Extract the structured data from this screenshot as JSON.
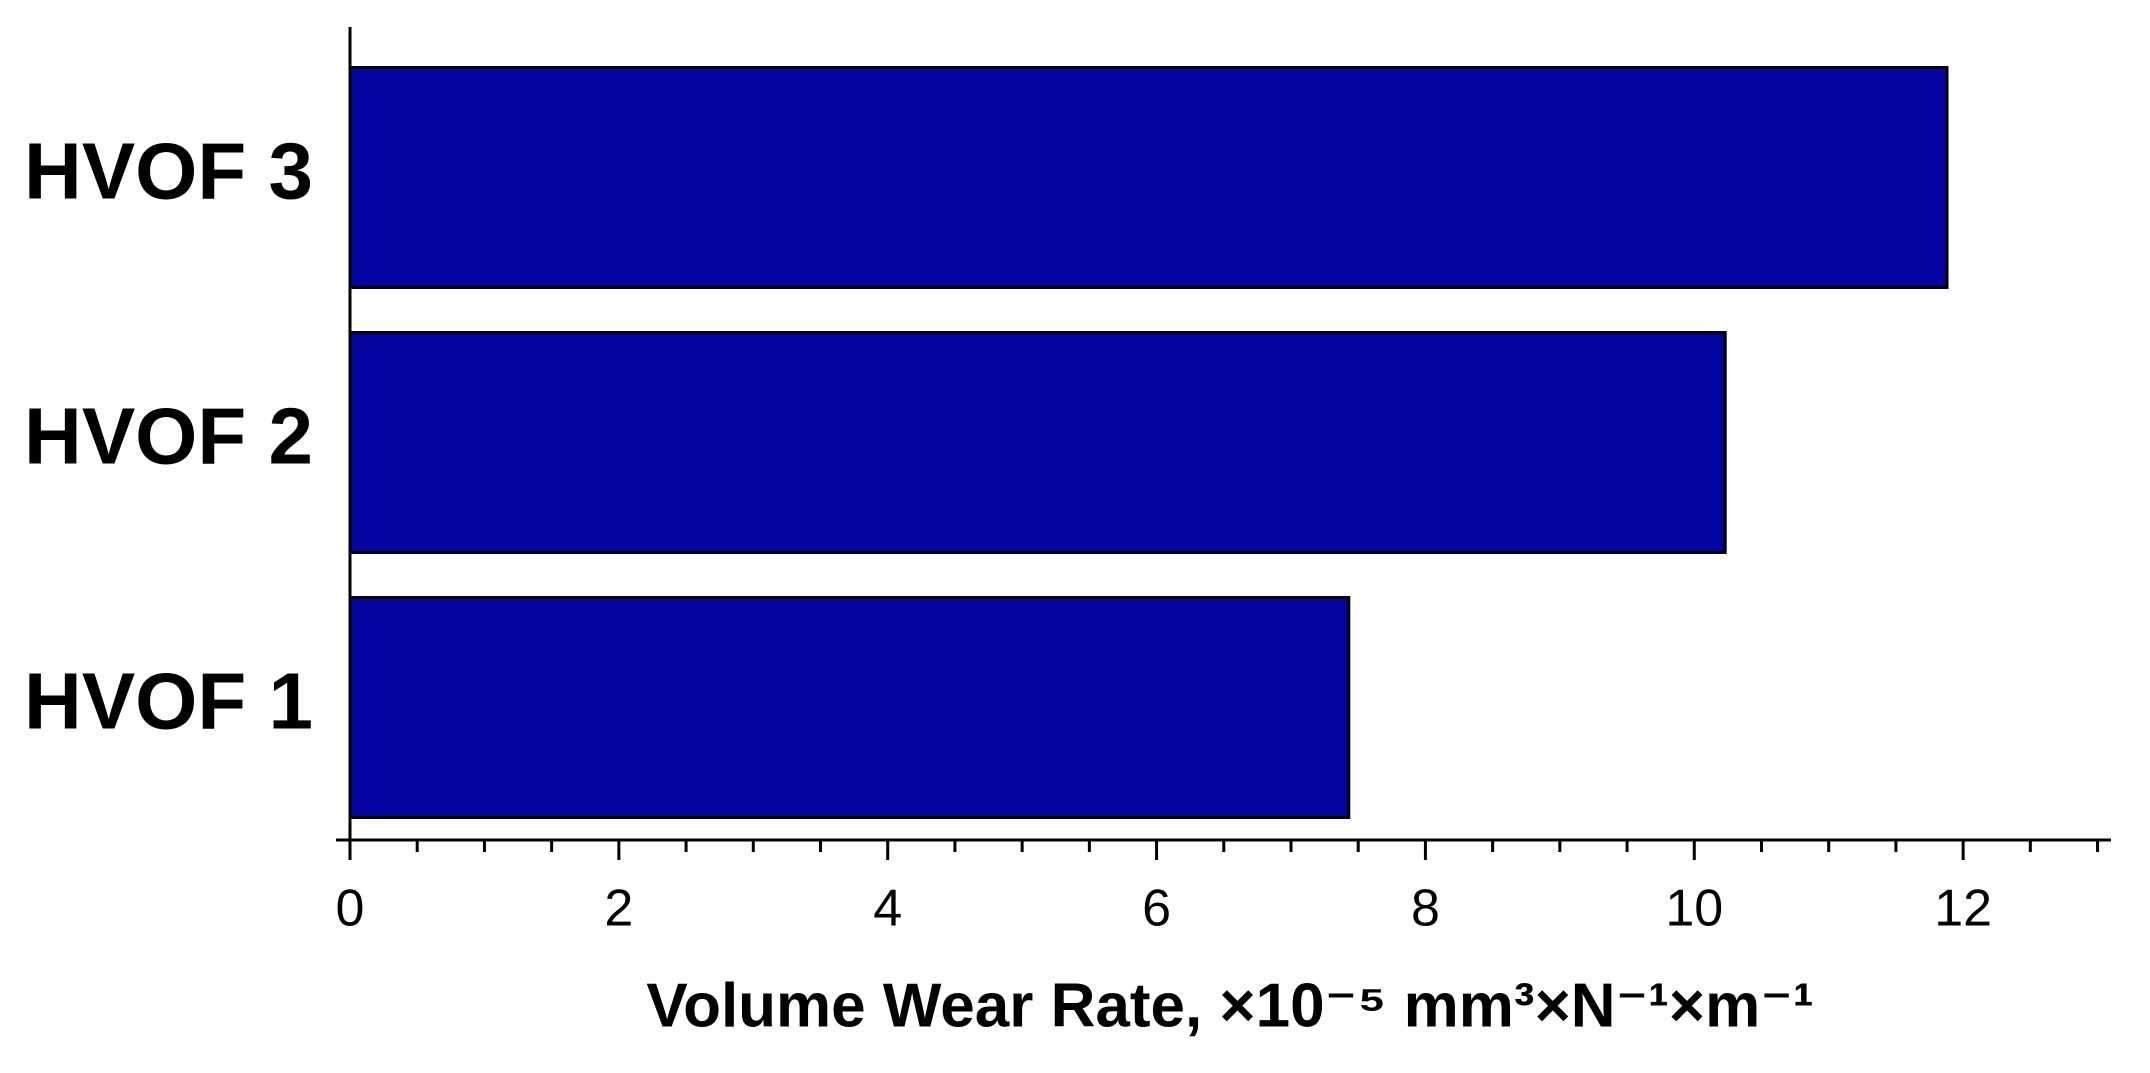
{
  "chart_data": {
    "type": "hbar",
    "x_label": "Volume Wear Rate, ×10⁻⁵ mm³×N⁻¹×m⁻¹",
    "categories": [
      "HVOF 1",
      "HVOF 2",
      "HVOF 3"
    ],
    "values": [
      7.43,
      10.23,
      11.88
    ],
    "color": "#0404a0",
    "xlim": [
      0,
      13.1
    ],
    "xticks": [
      0,
      2,
      4,
      6,
      8,
      10,
      12
    ],
    "xminorticks": [
      0.5,
      1,
      1.5,
      2.5,
      3,
      3.5,
      4.5,
      5,
      5.5,
      6.5,
      7,
      7.5,
      8.5,
      9,
      9.5,
      10.5,
      11,
      11.5,
      12.5,
      13
    ]
  }
}
